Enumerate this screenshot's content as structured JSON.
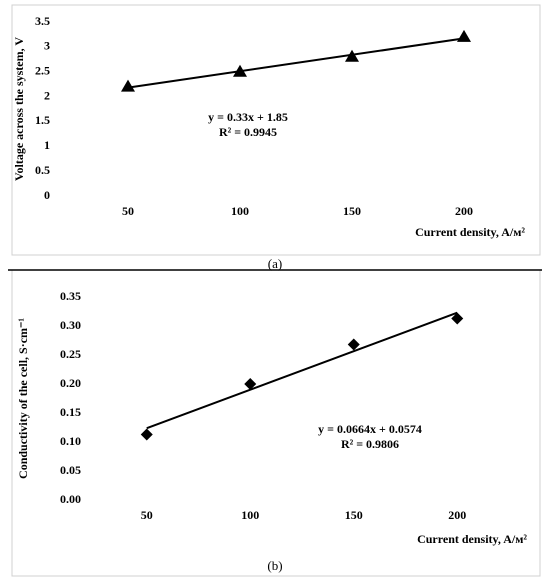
{
  "chart_data": [
    {
      "type": "scatter",
      "marker": "triangle",
      "color": "#000000",
      "categories": [
        "50",
        "100",
        "150",
        "200"
      ],
      "values": [
        2.2,
        2.5,
        2.8,
        3.2
      ],
      "ylim": [
        0,
        3.5
      ],
      "yticks": [
        0,
        0.5,
        1,
        1.5,
        2,
        2.5,
        3,
        3.5
      ],
      "y_label": "Voltage across the system, V",
      "x_label": "Current density, A/м²",
      "trendline": {
        "slope": 0.33,
        "intercept": 1.85,
        "equation": "y = 0.33x + 1.85",
        "r2": "R² = 0.9945"
      },
      "caption": "(a)"
    },
    {
      "type": "scatter",
      "marker": "diamond",
      "color": "#000000",
      "categories": [
        "50",
        "100",
        "150",
        "200"
      ],
      "values": [
        0.113,
        0.2,
        0.268,
        0.313
      ],
      "ylim": [
        0,
        0.35
      ],
      "yticks": [
        {
          "value": 0,
          "label": "0.00"
        },
        {
          "value": 0.05,
          "label": "0.05"
        },
        {
          "value": 0.1,
          "label": "0.10"
        },
        {
          "value": 0.15,
          "label": "0.15"
        },
        {
          "value": 0.2,
          "label": "0.20"
        },
        {
          "value": 0.25,
          "label": "0.25"
        },
        {
          "value": 0.3,
          "label": "0.30"
        },
        {
          "value": 0.35,
          "label": "0.35"
        }
      ],
      "y_label": "Conductivity of the cell, S·cm⁻¹",
      "x_label": "Current density, A/м²",
      "trendline": {
        "slope": 0.0664,
        "intercept": 0.0574,
        "equation": "y = 0.0664x + 0.0574",
        "r2": "R² = 0.9806"
      },
      "caption": "(b)"
    }
  ]
}
